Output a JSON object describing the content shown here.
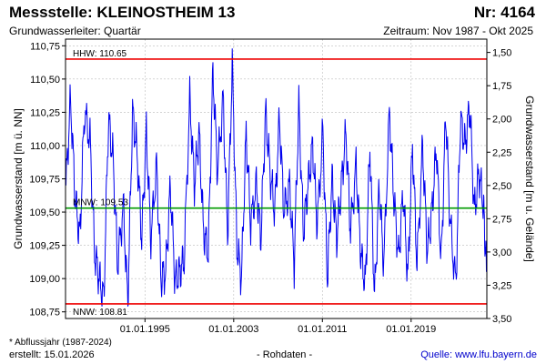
{
  "header": {
    "title": "Messstelle: KLEINOSTHEIM 13",
    "number": "Nr: 4164",
    "subtitle": "Grundwasserleiter: Quartär",
    "period": "Zeitraum: Nov 1987 - Okt 2025"
  },
  "footer": {
    "note": "* Abflussjahr (1987-2024)",
    "created": "erstellt:  15.01.2026",
    "rohdaten": "- Rohdaten -",
    "source": "Quelle:  www.lfu.bayern.de"
  },
  "colors": {
    "series": "#0000ee",
    "hhw": "#ee0000",
    "nnw": "#ee0000",
    "mnw": "#009900",
    "grid": "#bbbbbb"
  },
  "chart_data": {
    "type": "line",
    "ylabel": "Grundwasserstand [m ü. NN]",
    "y2label": "Grundwasserstand [m u. Gelände]",
    "ylim": [
      108.7,
      110.8
    ],
    "y2lim": [
      3.5,
      1.4
    ],
    "yticks": [
      108.75,
      109.0,
      109.25,
      109.5,
      109.75,
      110.0,
      110.25,
      110.5,
      110.75
    ],
    "ytick_labels": [
      "108,75",
      "109,00",
      "109,25",
      "109,50",
      "109,75",
      "110,00",
      "110,25",
      "110,50",
      "110,75"
    ],
    "y2ticks": [
      1.5,
      1.75,
      2.0,
      2.25,
      2.5,
      2.75,
      3.0,
      3.25,
      3.5
    ],
    "y2tick_labels": [
      "1,50",
      "1,75",
      "2,00",
      "2,25",
      "2,50",
      "2,75",
      "3,00",
      "3,25",
      "3,50"
    ],
    "xlim": [
      "1987-11-01",
      "2025-10-31"
    ],
    "xticks": [
      "1995-01-01",
      "2003-01-01",
      "2011-01-01",
      "2019-01-01"
    ],
    "xtick_labels": [
      "01.01.1995",
      "01.01.2003",
      "01.01.2011",
      "01.01.2019"
    ],
    "grid": true,
    "reference_lines": [
      {
        "label": "HHW: 110.65",
        "value": 110.65,
        "key": "hhw"
      },
      {
        "label": "MNW: 109.53",
        "value": 109.53,
        "key": "mnw"
      },
      {
        "label": "NNW: 108.81",
        "value": 108.81,
        "key": "nnw"
      }
    ],
    "series": [
      {
        "x": [
          "1987-11",
          "1988-04",
          "1988-09",
          "1989-02",
          "1989-07",
          "1990-01",
          "1990-06",
          "1990-11",
          "1991-04",
          "1991-09",
          "1992-02",
          "1992-07",
          "1993-01",
          "1993-06",
          "1993-11",
          "1994-04",
          "1994-09",
          "1995-02",
          "1995-07",
          "1996-01",
          "1996-06",
          "1996-11",
          "1997-04",
          "1997-09",
          "1998-02",
          "1998-07",
          "1999-01",
          "1999-06",
          "1999-11",
          "2000-04",
          "2000-09",
          "2001-02",
          "2001-07",
          "2002-01",
          "2002-06",
          "2002-11",
          "2003-04",
          "2003-09",
          "2004-02",
          "2004-07",
          "2005-01",
          "2005-06",
          "2005-11",
          "2006-04",
          "2006-09",
          "2007-02",
          "2007-07",
          "2008-01",
          "2008-06",
          "2008-11",
          "2009-04",
          "2009-09",
          "2010-02",
          "2010-07",
          "2011-01",
          "2011-06",
          "2011-11",
          "2012-04",
          "2012-09",
          "2013-02",
          "2013-07",
          "2014-01",
          "2014-06",
          "2014-11",
          "2015-04",
          "2015-09",
          "2016-02",
          "2016-07",
          "2017-01",
          "2017-06",
          "2017-11",
          "2018-04",
          "2018-09",
          "2019-02",
          "2019-07",
          "2020-01",
          "2020-06",
          "2020-11",
          "2021-04",
          "2021-09",
          "2022-02",
          "2022-07",
          "2023-01",
          "2023-06",
          "2023-11",
          "2024-04",
          "2024-09",
          "2025-02",
          "2025-07",
          "2025-10"
        ],
        "y": [
          109.7,
          110.35,
          109.6,
          109.3,
          110.25,
          110.05,
          109.2,
          109.0,
          108.85,
          110.2,
          109.9,
          109.1,
          109.55,
          108.8,
          110.25,
          109.95,
          109.3,
          110.1,
          109.3,
          109.85,
          109.0,
          109.05,
          109.7,
          108.98,
          109.05,
          109.15,
          110.35,
          109.7,
          110.1,
          109.35,
          109.2,
          110.55,
          109.8,
          110.35,
          109.35,
          110.6,
          109.25,
          109.0,
          110.1,
          109.4,
          109.7,
          109.3,
          110.25,
          109.8,
          109.5,
          110.2,
          109.5,
          109.7,
          109.1,
          110.3,
          109.35,
          109.7,
          110.0,
          109.4,
          110.1,
          109.0,
          109.75,
          109.3,
          109.7,
          110.1,
          109.35,
          109.85,
          109.2,
          108.95,
          110.0,
          108.85,
          109.7,
          109.1,
          110.25,
          109.6,
          109.15,
          109.65,
          109.0,
          110.0,
          109.1,
          110.0,
          109.2,
          109.5,
          110.0,
          109.1,
          110.25,
          109.4,
          108.95,
          110.2,
          110.0,
          110.3,
          109.5,
          109.8,
          109.55,
          109.05
        ]
      }
    ]
  }
}
